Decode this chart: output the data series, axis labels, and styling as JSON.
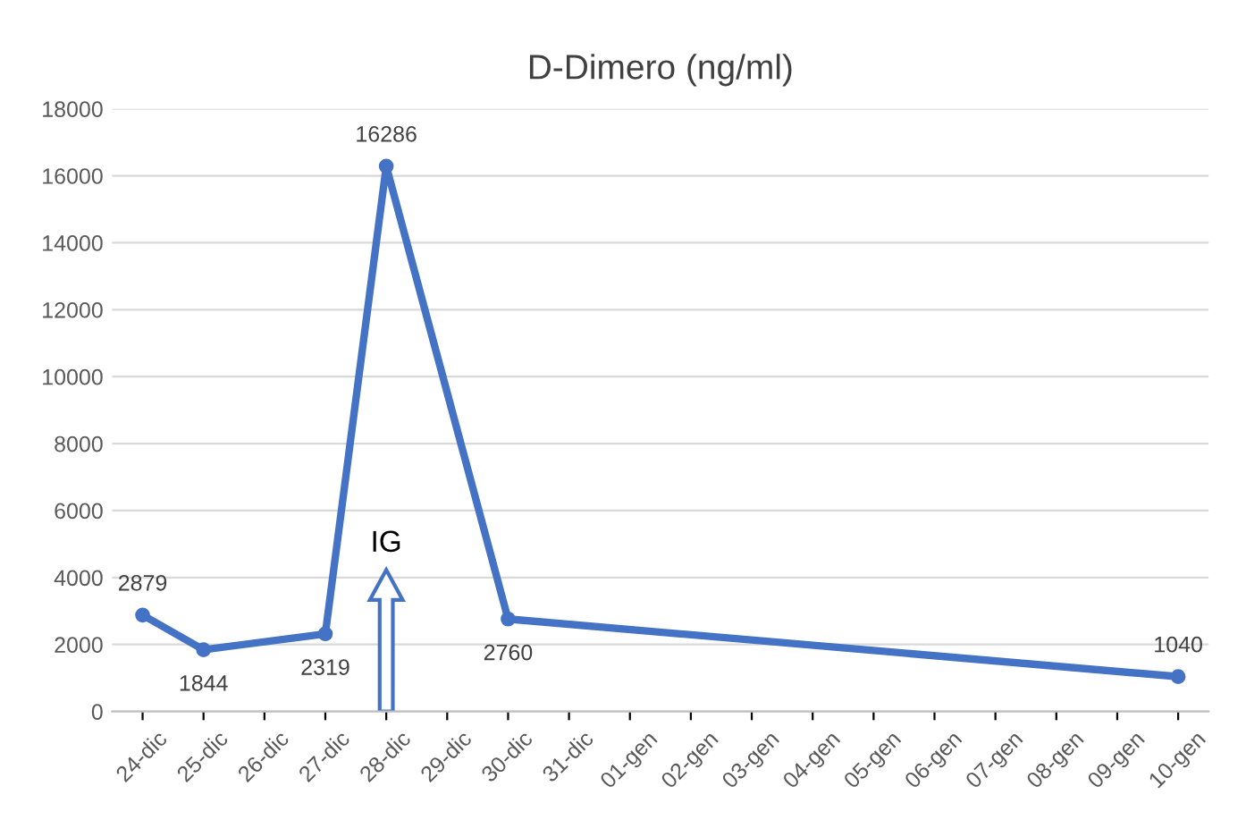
{
  "chart_data": {
    "type": "line",
    "title": "D-Dimero (ng/ml)",
    "categories": [
      "24-dic",
      "25-dic",
      "26-dic",
      "27-dic",
      "28-dic",
      "29-dic",
      "30-dic",
      "31-dic",
      "01-gen",
      "02-gen",
      "03-gen",
      "04-gen",
      "05-gen",
      "06-gen",
      "07-gen",
      "08-gen",
      "09-gen",
      "10-gen"
    ],
    "series": [
      {
        "color": "#4472c4",
        "values": [
          2879,
          1844,
          null,
          2319,
          16286,
          null,
          2760,
          null,
          null,
          null,
          null,
          null,
          null,
          null,
          null,
          null,
          null,
          1040
        ]
      }
    ],
    "ylim": [
      0,
      18000
    ],
    "yticks": [
      0,
      2000,
      4000,
      6000,
      8000,
      10000,
      12000,
      14000,
      16000,
      18000
    ],
    "grid": "y",
    "marker": "circle",
    "line_style": "solid",
    "data_labels": true,
    "legend": false,
    "annotations": [
      "IG"
    ]
  }
}
